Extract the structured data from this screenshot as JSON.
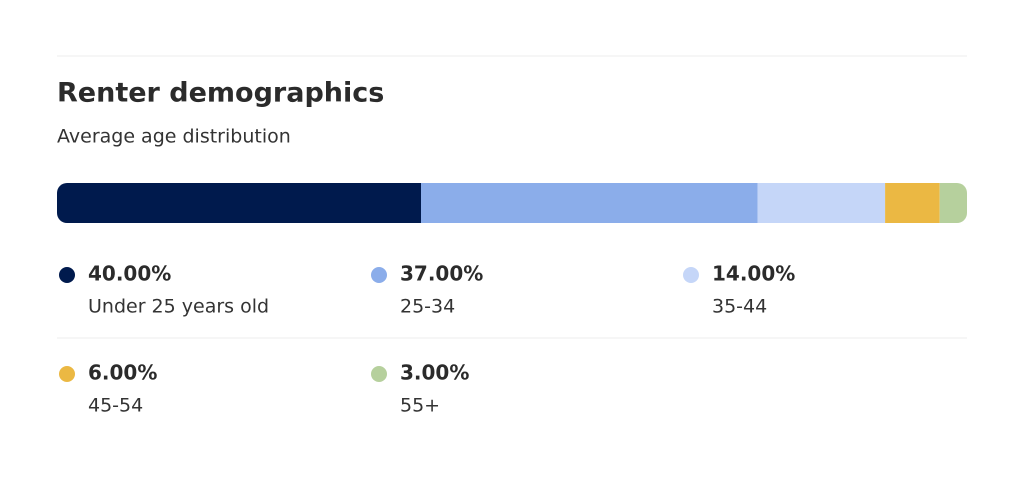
{
  "chart_data": {
    "type": "stacked-bar",
    "title": "Renter demographics",
    "subtitle": "Average age distribution",
    "xlim": [
      0,
      100
    ],
    "series": [
      {
        "name": "Under 25 years old",
        "color": "#001a4d",
        "values": [
          40
        ],
        "value_labels": [
          "40.00%"
        ]
      },
      {
        "name": "25-34",
        "color": "#8badea",
        "values": [
          37
        ],
        "value_labels": [
          "37.00%"
        ]
      },
      {
        "name": "35-44",
        "color": "#c5d6f8",
        "values": [
          14
        ],
        "value_labels": [
          "14.00%"
        ]
      },
      {
        "name": "45-54",
        "color": "#ebb843",
        "values": [
          6
        ],
        "value_labels": [
          "6.00%"
        ]
      },
      {
        "name": "55+",
        "color": "#b6d09d",
        "values": [
          3
        ],
        "value_labels": [
          "3.00%"
        ]
      }
    ]
  }
}
